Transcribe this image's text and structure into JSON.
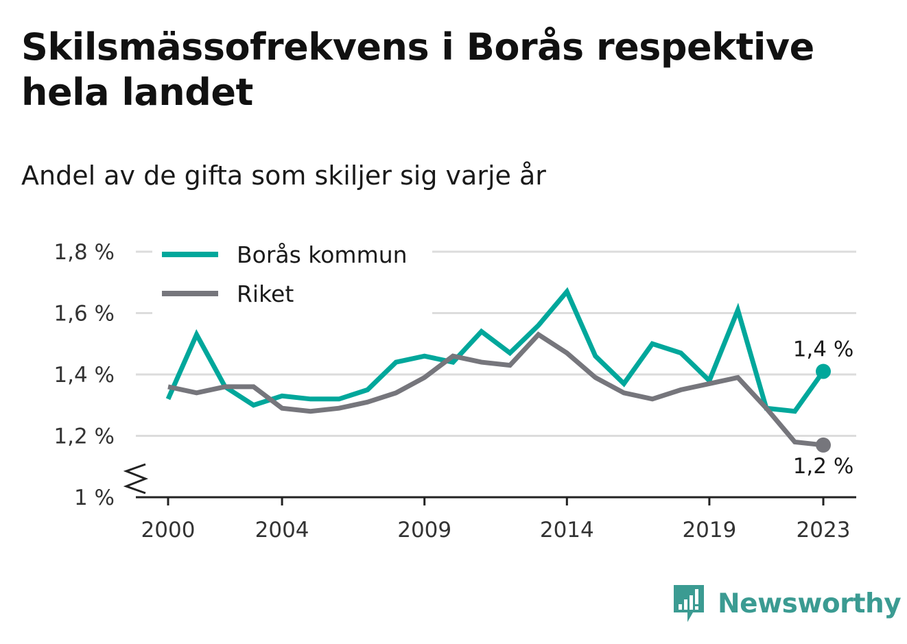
{
  "title": "Skilsmässofrekvens i Borås respektive hela landet",
  "subtitle": "Andel av de gifta som skiljer sig varje år",
  "brand": {
    "name": "Newsworthy",
    "icon": "newsworthy-logo-icon",
    "color": "#3b9b92"
  },
  "chart_data": {
    "type": "line",
    "x": [
      2000,
      2001,
      2002,
      2003,
      2004,
      2005,
      2006,
      2007,
      2008,
      2009,
      2010,
      2011,
      2012,
      2013,
      2014,
      2015,
      2016,
      2017,
      2018,
      2019,
      2020,
      2021,
      2022,
      2023
    ],
    "xticks": [
      2000,
      2004,
      2009,
      2014,
      2019,
      2023
    ],
    "yticks": [
      1.0,
      1.2,
      1.4,
      1.6,
      1.8
    ],
    "ytick_labels": [
      "1 %",
      "1,2 %",
      "1,4 %",
      "1,6 %",
      "1,8 %"
    ],
    "ylim": [
      1.0,
      1.8
    ],
    "y_axis_broken": true,
    "grid": "horizontal",
    "legend_position": "top-left",
    "series": [
      {
        "name": "Borås kommun",
        "color": "#00a79b",
        "values": [
          1.32,
          1.53,
          1.36,
          1.3,
          1.33,
          1.32,
          1.32,
          1.35,
          1.44,
          1.46,
          1.44,
          1.54,
          1.47,
          1.56,
          1.67,
          1.46,
          1.37,
          1.5,
          1.47,
          1.38,
          1.61,
          1.29,
          1.28,
          1.41
        ],
        "end_label": "1,4 %"
      },
      {
        "name": "Riket",
        "color": "#76767c",
        "values": [
          1.36,
          1.34,
          1.36,
          1.36,
          1.29,
          1.28,
          1.29,
          1.31,
          1.34,
          1.39,
          1.46,
          1.44,
          1.43,
          1.53,
          1.47,
          1.39,
          1.34,
          1.32,
          1.35,
          1.37,
          1.39,
          1.29,
          1.18,
          1.17
        ],
        "end_label": "1,2 %"
      }
    ]
  }
}
